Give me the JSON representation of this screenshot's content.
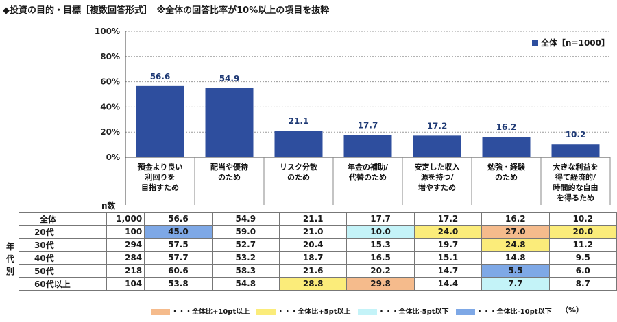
{
  "title": "◆投資の目的・目標［複数回答形式］　※全体の回答比率が10%以上の項目を抜粋",
  "legend_label": "全体【n=1000】",
  "n_label": "n数",
  "unit_label": "（%）",
  "age_group_label": [
    "年",
    "代",
    "別"
  ],
  "colors": {
    "bar": "#2e4e9e",
    "high10": "#f5bb8c",
    "high5": "#fbec7a",
    "low5": "#c4f3f8",
    "low10": "#7ea8e6"
  },
  "chart_data": {
    "type": "bar",
    "categories": [
      "預金より良い\n利回りを\n目指すため",
      "配当や優待\nのため",
      "リスク分散\nのため",
      "年金の補助/\n代替のため",
      "安定した収入\n源を持つ/\n増やすため",
      "勉強・経験\nのため",
      "大きな利益を\n得て経済的/\n時間的な自由\nを得るため"
    ],
    "series": [
      {
        "name": "全体【n=1000】",
        "values": [
          56.6,
          54.9,
          21.1,
          17.7,
          17.2,
          16.2,
          10.2
        ]
      }
    ],
    "value_labels": [
      "56.6",
      "54.9",
      "21.1",
      "17.7",
      "17.2",
      "16.2",
      "10.2"
    ],
    "y_ticks": [
      "0%",
      "20%",
      "40%",
      "60%",
      "80%",
      "100%"
    ],
    "ylim": [
      0,
      100
    ],
    "grid": true,
    "legend_position": "top-right"
  },
  "table": {
    "rows": [
      {
        "label": "全体",
        "n": "1,000",
        "values": [
          "56.6",
          "54.9",
          "21.1",
          "17.7",
          "17.2",
          "16.2",
          "10.2"
        ],
        "hl": [
          "",
          "",
          "",
          "",
          "",
          "",
          ""
        ]
      },
      {
        "label": "20代",
        "n": "100",
        "values": [
          "45.0",
          "59.0",
          "21.0",
          "10.0",
          "24.0",
          "27.0",
          "20.0"
        ],
        "hl": [
          "l2",
          "",
          "",
          "l1",
          "h2",
          "h1",
          "h2"
        ]
      },
      {
        "label": "30代",
        "n": "294",
        "values": [
          "57.5",
          "52.7",
          "20.4",
          "15.3",
          "19.7",
          "24.8",
          "11.2"
        ],
        "hl": [
          "",
          "",
          "",
          "",
          "",
          "h2",
          ""
        ]
      },
      {
        "label": "40代",
        "n": "284",
        "values": [
          "57.7",
          "53.2",
          "18.7",
          "16.5",
          "15.1",
          "14.8",
          "9.5"
        ],
        "hl": [
          "",
          "",
          "",
          "",
          "",
          "",
          ""
        ]
      },
      {
        "label": "50代",
        "n": "218",
        "values": [
          "60.6",
          "58.3",
          "21.6",
          "20.2",
          "14.7",
          "5.5",
          "6.0"
        ],
        "hl": [
          "",
          "",
          "",
          "",
          "",
          "l2",
          ""
        ]
      },
      {
        "label": "60代以上",
        "n": "104",
        "values": [
          "53.8",
          "54.8",
          "28.8",
          "29.8",
          "14.4",
          "7.7",
          "8.7"
        ],
        "hl": [
          "",
          "",
          "h2",
          "h1",
          "",
          "l1",
          ""
        ]
      }
    ]
  },
  "footer_legend": [
    {
      "label": "・・・全体比+10pt以上",
      "color": "#f5bb8c"
    },
    {
      "label": "・・・全体比+5pt以上",
      "color": "#fbec7a"
    },
    {
      "label": "・・・全体比-5pt以下",
      "color": "#c4f3f8"
    },
    {
      "label": "・・・全体比-10pt以下",
      "color": "#7ea8e6"
    }
  ]
}
